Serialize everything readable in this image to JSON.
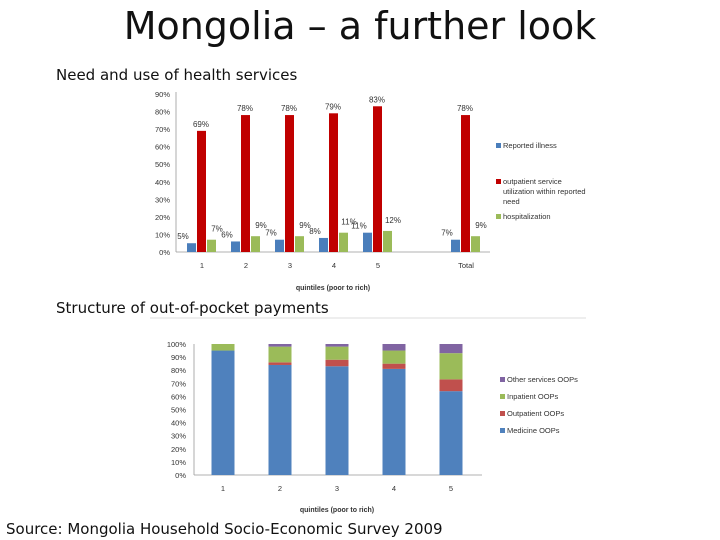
{
  "title": "Mongolia – a further look",
  "source": "Source: Mongolia Household Socio-Economic Survey 2009",
  "chart_data": [
    {
      "type": "bar",
      "title": "Need and use of health services",
      "xlabel": "quintiles (poor to rich)",
      "ylabel": "",
      "ylim": [
        0,
        90
      ],
      "yticks": [
        "0%",
        "10%",
        "20%",
        "30%",
        "40%",
        "50%",
        "60%",
        "70%",
        "80%",
        "90%"
      ],
      "categories": [
        "1",
        "2",
        "3",
        "4",
        "5",
        "Total"
      ],
      "legend_position": "right",
      "series": [
        {
          "name": "Reported illness",
          "color": "#4a7ebb",
          "values": [
            5,
            6,
            7,
            8,
            11,
            7
          ],
          "labels": [
            "5%",
            "6%",
            "7%",
            "8%",
            "11%",
            "7%"
          ]
        },
        {
          "name": "outpatient service utilization within reported need",
          "color": "#c00000",
          "values": [
            69,
            78,
            78,
            79,
            83,
            78
          ],
          "labels": [
            "69%",
            "78%",
            "78%",
            "79%",
            "83%",
            "78%"
          ]
        },
        {
          "name": "hospitalization",
          "color": "#9bbb59",
          "values": [
            7,
            9,
            9,
            11,
            12,
            9
          ],
          "labels": [
            "7%",
            "9%",
            "9%",
            "11%",
            "12%",
            "9%"
          ]
        }
      ],
      "legend_lines": [
        [
          "Reported illness"
        ],
        [
          "outpatient service",
          "utilization within reported",
          "need"
        ],
        [
          "hospitalization"
        ]
      ]
    },
    {
      "type": "bar",
      "stacked": true,
      "title": "Structure of out-of-pocket payments",
      "xlabel": "quintiles (poor to rich)",
      "ylabel": "",
      "ylim": [
        0,
        100
      ],
      "yticks": [
        "0%",
        "10%",
        "20%",
        "30%",
        "40%",
        "50%",
        "60%",
        "70%",
        "80%",
        "90%",
        "100%"
      ],
      "categories": [
        "1",
        "2",
        "3",
        "4",
        "5"
      ],
      "legend_position": "right",
      "legend_order": [
        3,
        2,
        1,
        0
      ],
      "series": [
        {
          "name": "Medicine OOPs",
          "color": "#4f81bd",
          "values": [
            95,
            84,
            83,
            81,
            64
          ]
        },
        {
          "name": "Outpatient OOPs",
          "color": "#c0504d",
          "values": [
            0,
            2,
            5,
            4,
            9
          ]
        },
        {
          "name": "Inpatient OOPs",
          "color": "#9bbb59",
          "values": [
            5,
            12,
            10,
            10,
            20
          ]
        },
        {
          "name": "Other services OOPs",
          "color": "#8064a2",
          "values": [
            0,
            2,
            2,
            5,
            7
          ]
        }
      ]
    }
  ]
}
